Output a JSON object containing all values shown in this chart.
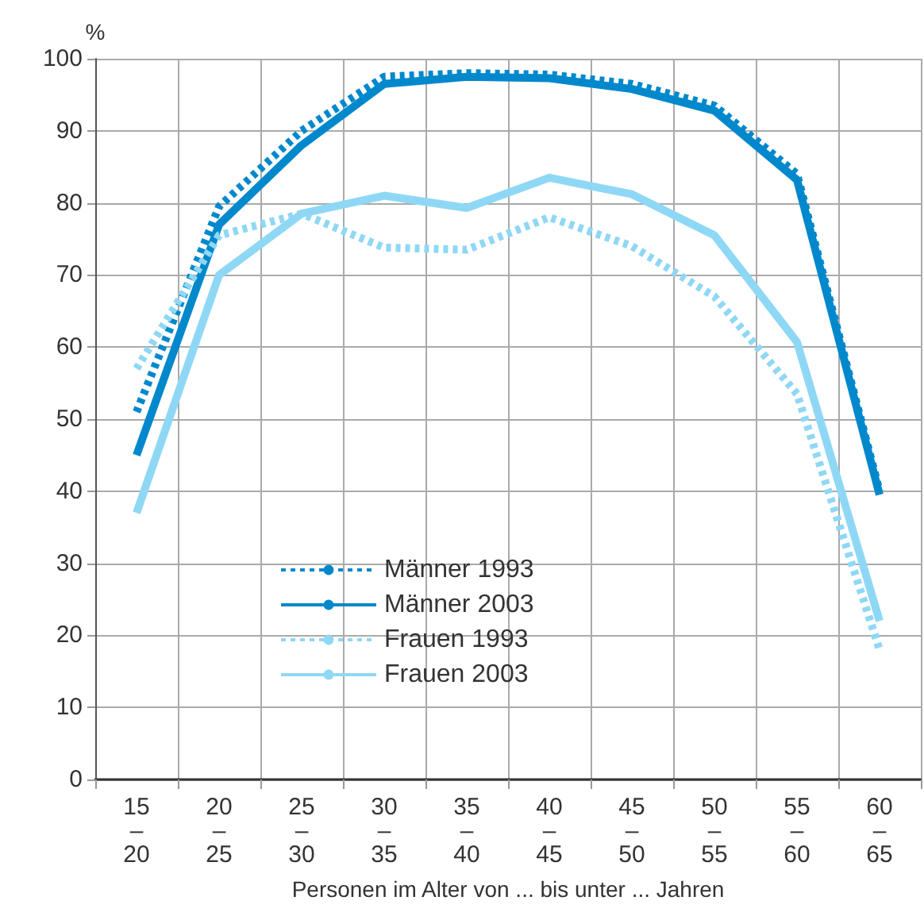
{
  "chart_data": {
    "type": "line",
    "ylabel": "%",
    "xlabel": "Personen im Alter von ... bis unter ... Jahren",
    "categories": [
      "15\n–\n20",
      "20\n–\n25",
      "25\n–\n30",
      "30\n–\n35",
      "35\n–\n40",
      "40\n–\n45",
      "45\n–\n50",
      "50\n–\n55",
      "55\n–\n60",
      "60\n–\n65"
    ],
    "series": [
      {
        "name": "Männer 1993",
        "color": "#0088cc",
        "line_style": "dotted",
        "values": [
          51,
          79.5,
          90,
          97.5,
          98,
          97.8,
          96.5,
          93.5,
          84,
          40
        ]
      },
      {
        "name": "Männer 2003",
        "color": "#0088cc",
        "line_style": "solid",
        "values": [
          45,
          77,
          88,
          96.5,
          97.5,
          97.3,
          95.8,
          92.8,
          83.2,
          39.5
        ]
      },
      {
        "name": "Frauen 1993",
        "color": "#8fd8f5",
        "line_style": "dotted",
        "values": [
          57,
          75.5,
          78.5,
          73.8,
          73.5,
          78,
          74,
          67,
          53.5,
          18
        ]
      },
      {
        "name": "Frauen 2003",
        "color": "#8fd8f5",
        "line_style": "solid",
        "values": [
          37,
          70,
          78.5,
          81,
          79.3,
          83.5,
          81.2,
          75.5,
          60.7,
          22
        ]
      }
    ],
    "ylim": [
      0,
      100
    ],
    "yticks": [
      0,
      10,
      20,
      30,
      40,
      50,
      60,
      70,
      80,
      90,
      100
    ],
    "grid": true,
    "legend": "bottom",
    "marker": "none"
  }
}
